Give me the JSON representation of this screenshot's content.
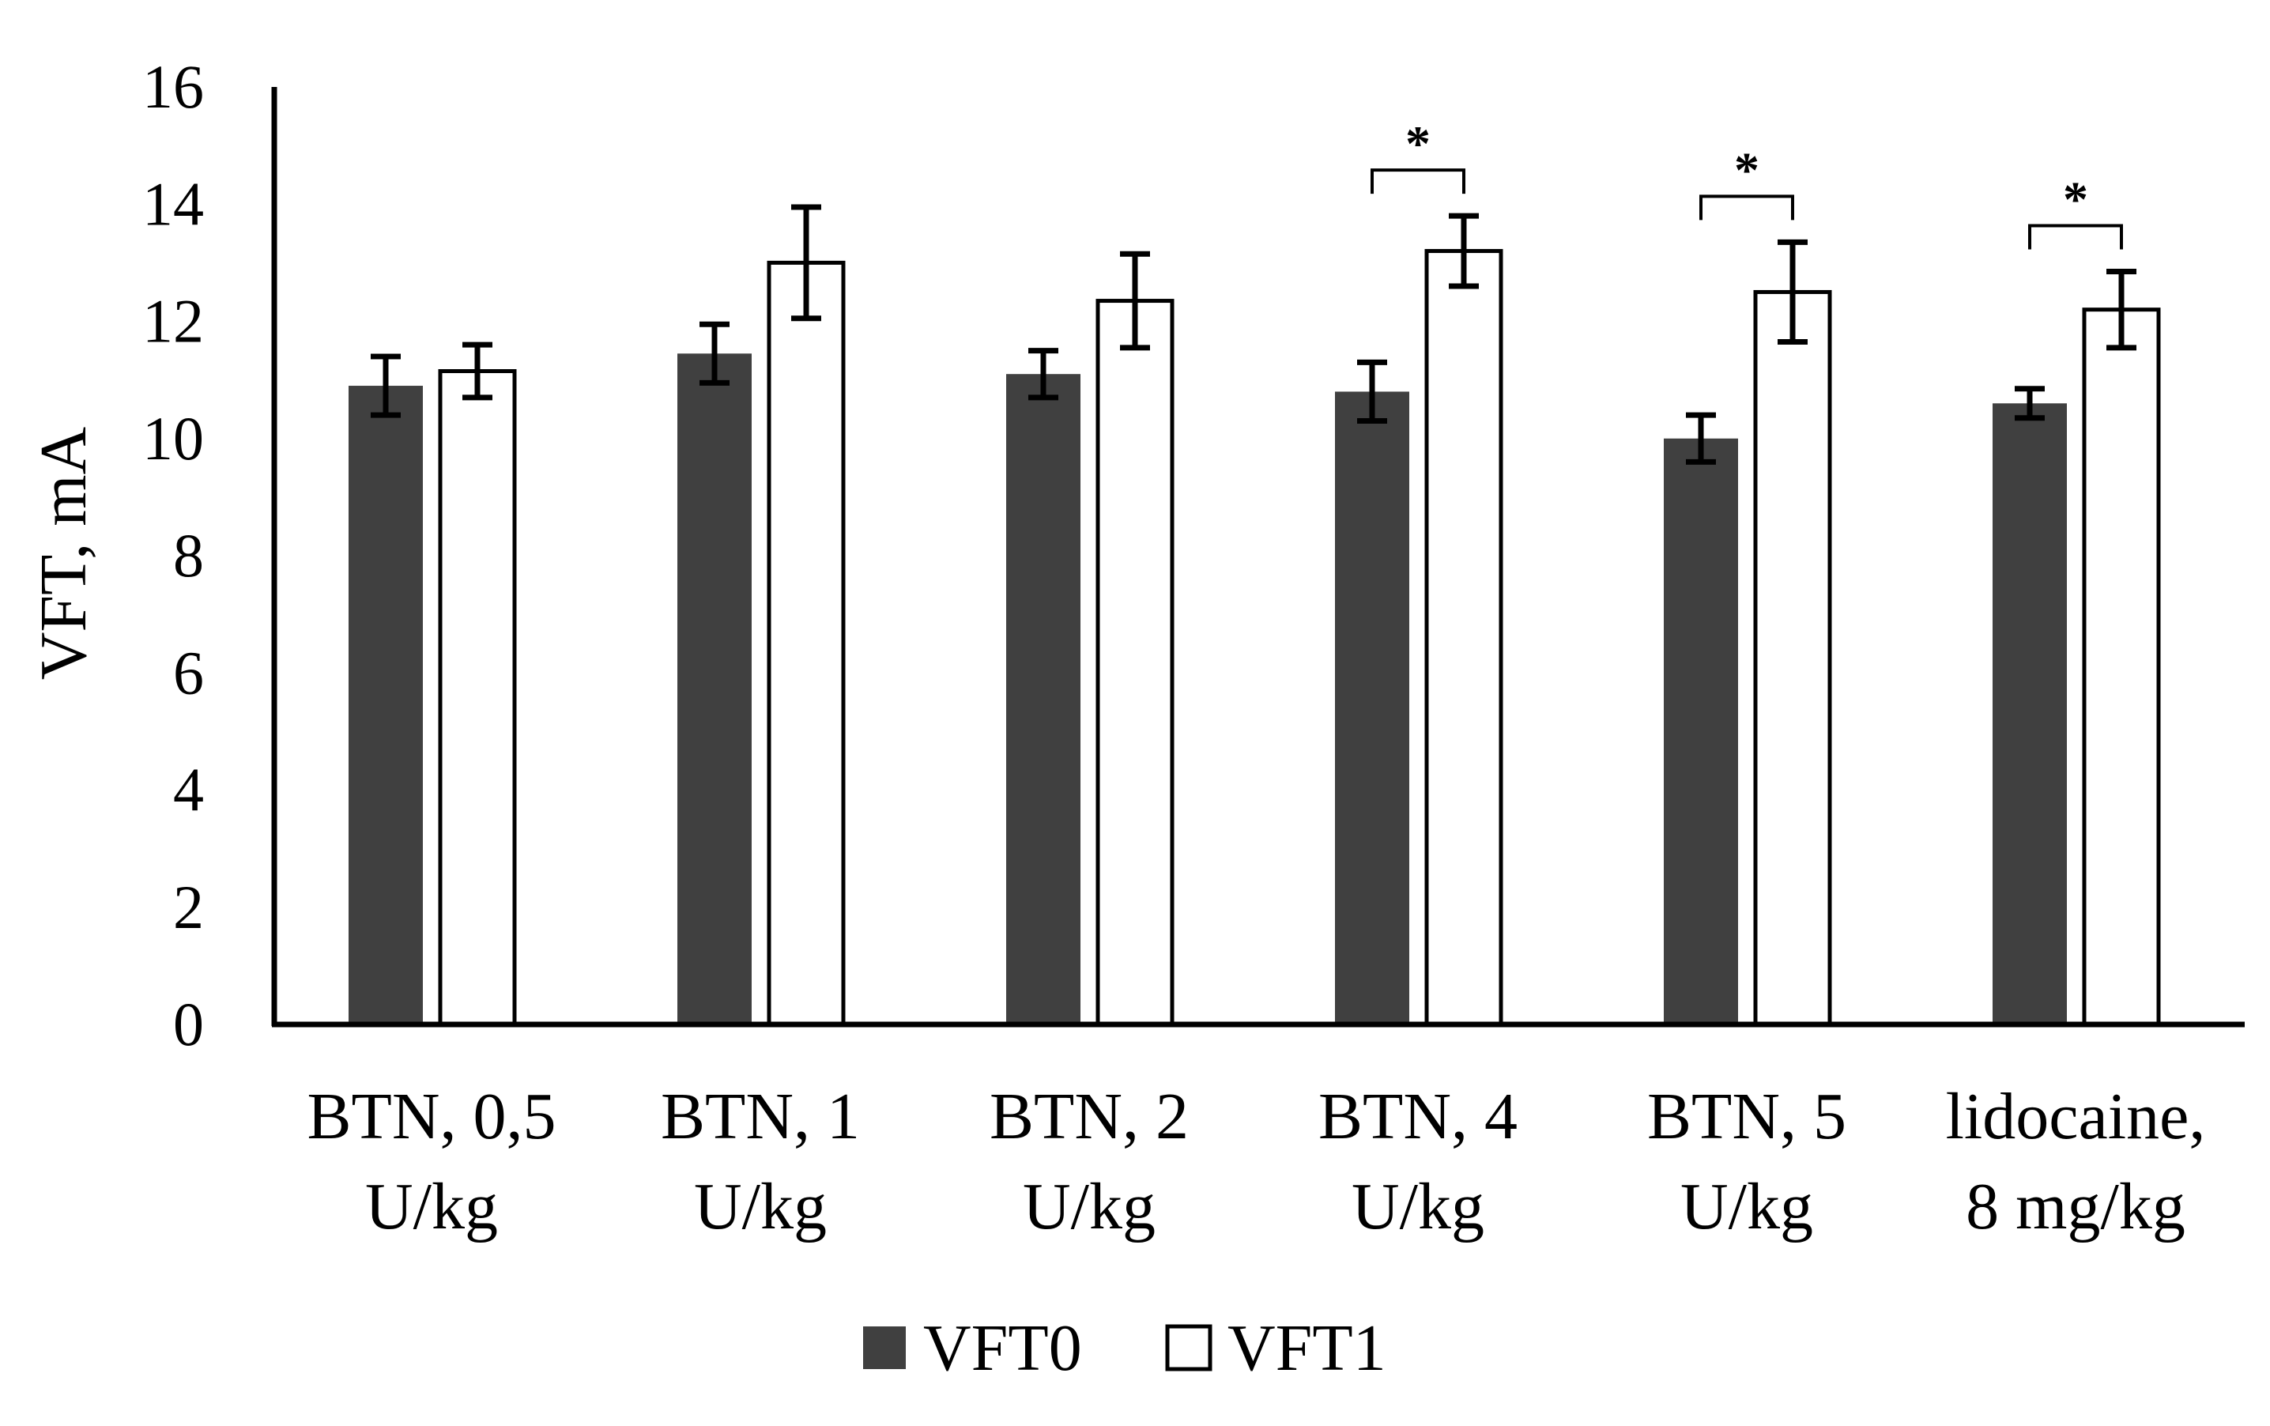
{
  "chart_data": {
    "type": "bar",
    "title": "",
    "xlabel": "",
    "ylabel": "VFT, mA",
    "ylim": [
      0,
      16
    ],
    "yticks": [
      0,
      2,
      4,
      6,
      8,
      10,
      12,
      14,
      16
    ],
    "grid": false,
    "legend_position": "bottom-center",
    "categories": [
      [
        "BTN, 0,5",
        "U/kg"
      ],
      [
        "BTN, 1",
        "U/kg"
      ],
      [
        "BTN, 2",
        "U/kg"
      ],
      [
        "BTN, 4",
        "U/kg"
      ],
      [
        "BTN, 5",
        "U/kg"
      ],
      [
        "lidocaine,",
        "8 mg/kg"
      ]
    ],
    "series": [
      {
        "name": "VFT0",
        "color": "#404040",
        "values": [
          10.9,
          11.45,
          11.1,
          10.8,
          10.0,
          10.6
        ],
        "errors": [
          0.5,
          0.5,
          0.4,
          0.5,
          0.4,
          0.25
        ]
      },
      {
        "name": "VFT1",
        "color": "#ffffff",
        "values": [
          11.15,
          13.0,
          12.35,
          13.2,
          12.5,
          12.2
        ],
        "errors": [
          0.45,
          0.95,
          0.8,
          0.6,
          0.85,
          0.65
        ]
      }
    ],
    "annotations": [
      {
        "category_index": 3,
        "text": "*"
      },
      {
        "category_index": 4,
        "text": "*"
      },
      {
        "category_index": 5,
        "text": "*"
      }
    ]
  }
}
